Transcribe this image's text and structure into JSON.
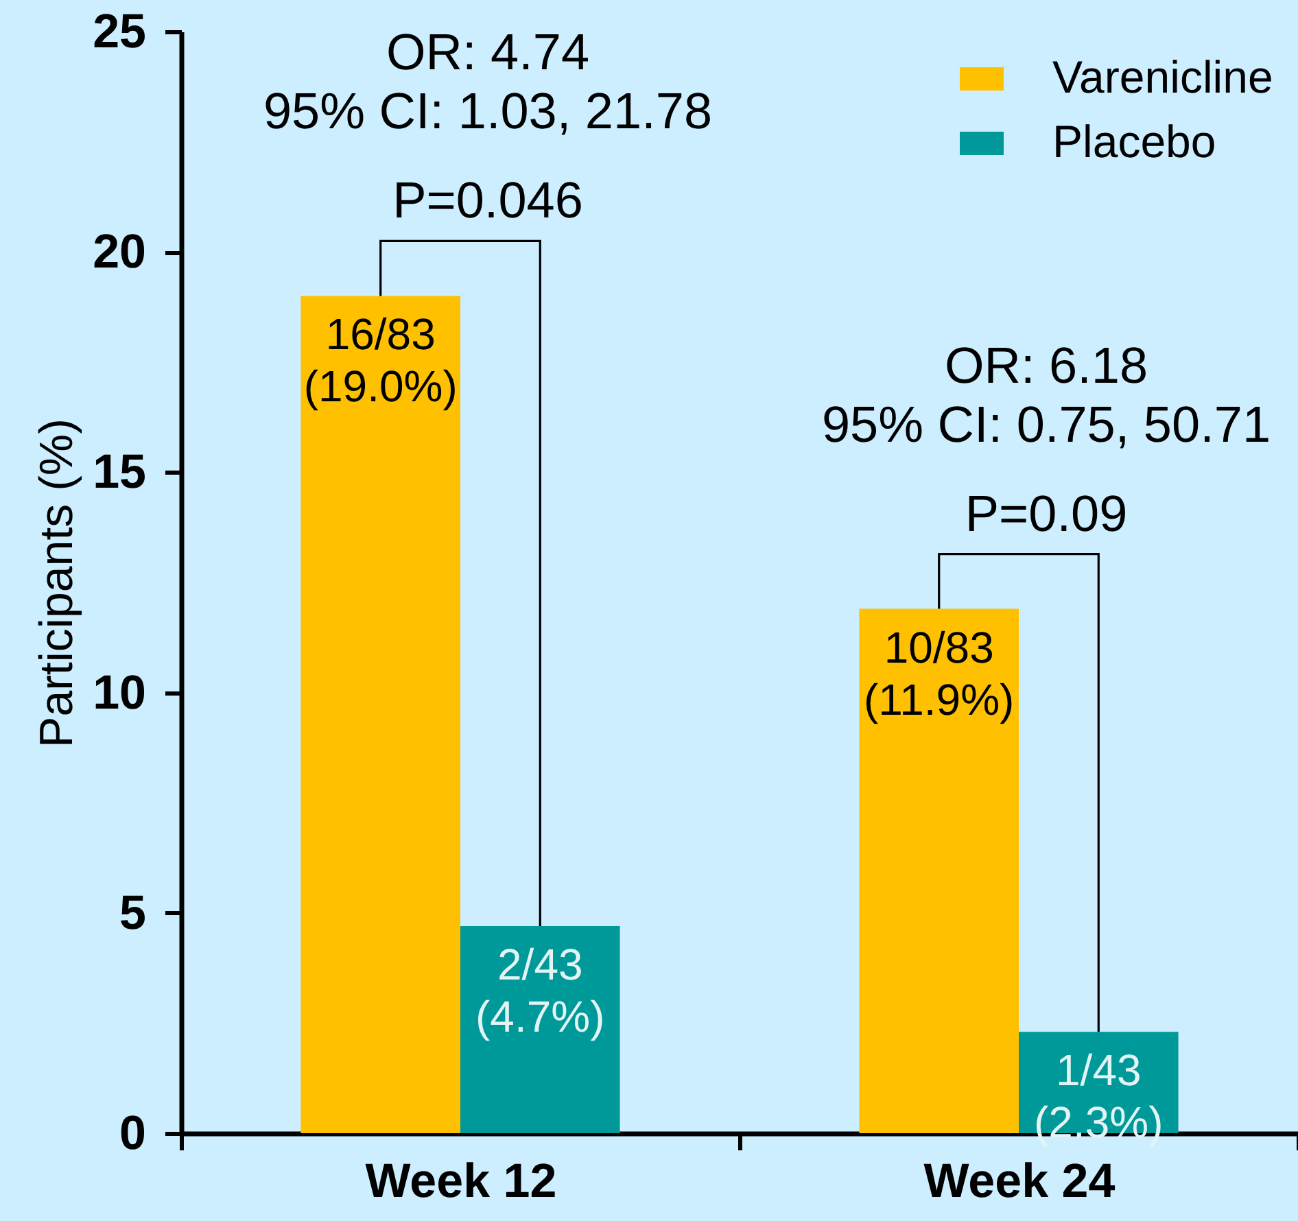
{
  "chart_data": {
    "type": "bar",
    "ylabel": "Participants (%)",
    "categories": [
      "Week 12",
      "Week 24"
    ],
    "series": [
      {
        "name": "Varenicline",
        "color": "#ffc000",
        "values": [
          19.0,
          11.9
        ],
        "value_labels": [
          "16/83\n(19.0%)",
          "10/83\n(11.9%)"
        ]
      },
      {
        "name": "Placebo",
        "color": "#009999",
        "values": [
          4.7,
          2.3
        ],
        "value_labels": [
          "2/43\n(4.7%)",
          "1/43\n(2.3%)"
        ]
      }
    ],
    "ylim": [
      0,
      25
    ],
    "yticks": [
      0,
      5,
      10,
      15,
      20,
      25
    ],
    "legend": "top right",
    "annotations": [
      "OR: 4.74",
      "95% CI: 1.03, 21.78",
      "P=0.046",
      "OR: 6.18",
      "95% CI: 0.75, 50.71",
      "P=0.09"
    ]
  }
}
